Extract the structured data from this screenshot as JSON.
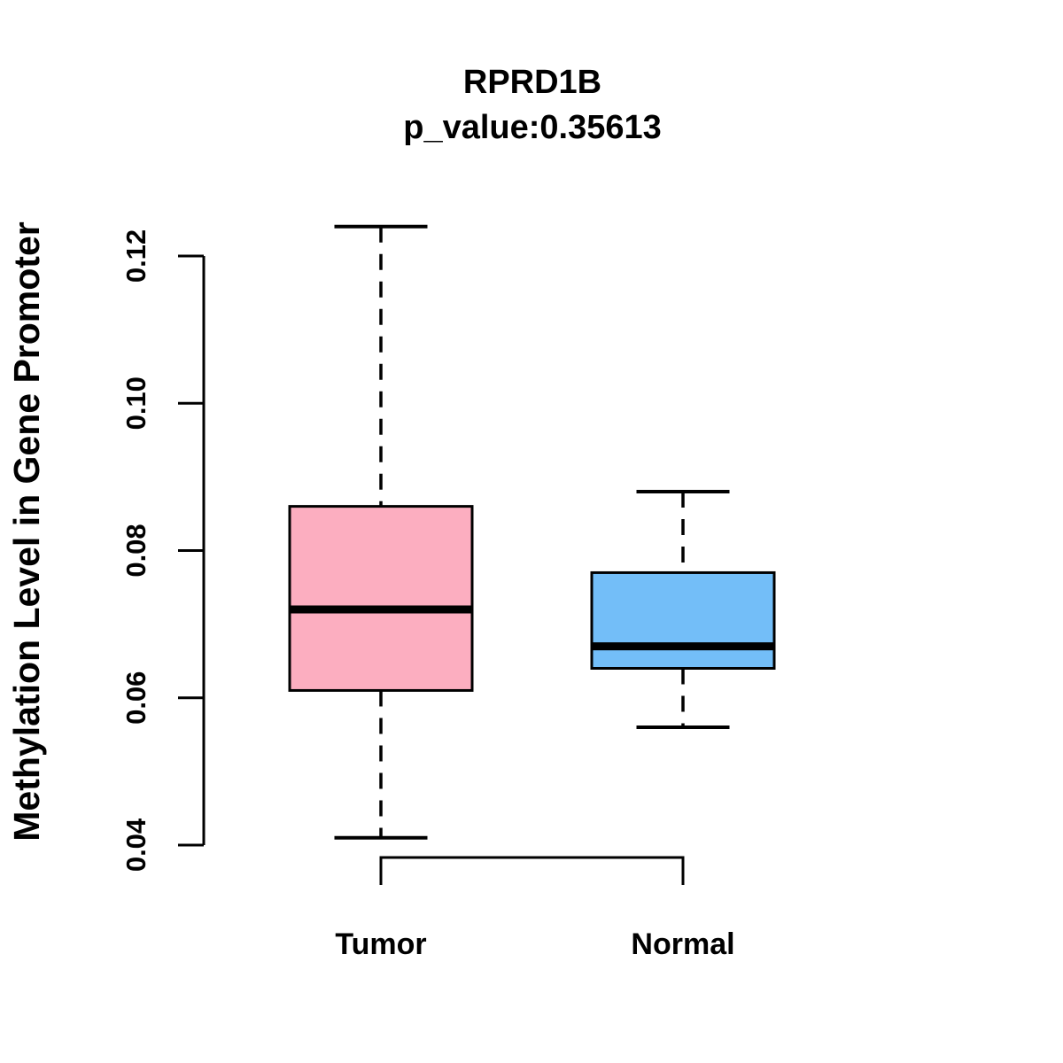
{
  "chart_data": {
    "type": "boxplot",
    "title": "RPRD1B",
    "subtitle": "p_value:0.35613",
    "ylabel": "Methylation Level in Gene Promoter",
    "xlabel": "",
    "ylim": [
      0.04,
      0.124
    ],
    "yticks": [
      0.04,
      0.06,
      0.08,
      0.1,
      0.12
    ],
    "ytick_labels": [
      "0.04",
      "0.06",
      "0.08",
      "0.10",
      "0.12"
    ],
    "categories": [
      "Tumor",
      "Normal"
    ],
    "series": [
      {
        "name": "Tumor",
        "color": "#FCAEC0",
        "whisker_low": 0.041,
        "q1": 0.061,
        "median": 0.072,
        "q3": 0.086,
        "whisker_high": 0.124
      },
      {
        "name": "Normal",
        "color": "#73BEF8",
        "whisker_low": 0.056,
        "q1": 0.064,
        "median": 0.067,
        "q3": 0.077,
        "whisker_high": 0.088
      }
    ],
    "legend": "none",
    "grid": "off",
    "colors": {
      "box_border": "#000000",
      "text": "#000000",
      "background": "#ffffff"
    }
  }
}
